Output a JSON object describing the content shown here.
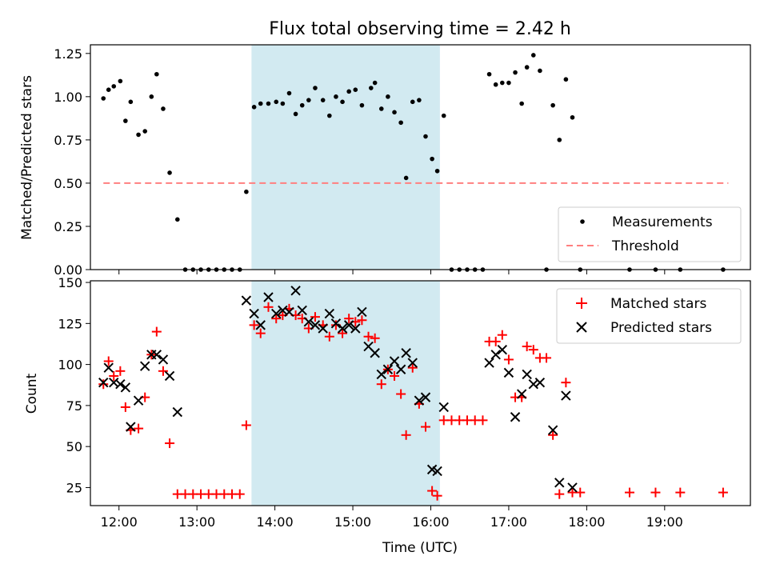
{
  "title": "Flux total observing time = 2.42 h",
  "colors": {
    "highlight": "#add8e6",
    "measurement": "#000000",
    "threshold": "#ff7f7f",
    "matched": "#ff0000",
    "predicted": "#000000"
  },
  "chart_data": [
    {
      "type": "scatter",
      "ylabel": "Matched/Predicted stars",
      "xlim": [
        "11:38",
        "20:06"
      ],
      "ylim": [
        0,
        1.3
      ],
      "x_ticks": [
        "12:00",
        "13:00",
        "14:00",
        "15:00",
        "16:00",
        "17:00",
        "18:00",
        "19:00"
      ],
      "y_ticks": [
        "0.00",
        "0.25",
        "0.50",
        "0.75",
        "1.00",
        "1.25"
      ],
      "highlight_span": [
        "13:42",
        "16:07"
      ],
      "legend": {
        "placement": "lower-right",
        "entries": [
          "Measurements",
          "Threshold"
        ]
      },
      "threshold": {
        "name": "Threshold",
        "value": 0.5,
        "x": [
          "11:48",
          "19:49"
        ]
      },
      "series": [
        {
          "name": "Measurements",
          "marker": "dot",
          "points": [
            [
              "11:48",
              0.99
            ],
            [
              "11:52",
              1.04
            ],
            [
              "11:56",
              1.06
            ],
            [
              "12:01",
              1.09
            ],
            [
              "12:05",
              0.86
            ],
            [
              "12:09",
              0.97
            ],
            [
              "12:15",
              0.78
            ],
            [
              "12:20",
              0.8
            ],
            [
              "12:25",
              1.0
            ],
            [
              "12:29",
              1.13
            ],
            [
              "12:34",
              0.93
            ],
            [
              "12:39",
              0.56
            ],
            [
              "12:45",
              0.29
            ],
            [
              "12:51",
              0.0
            ],
            [
              "12:57",
              0.0
            ],
            [
              "13:03",
              0.0
            ],
            [
              "13:09",
              0.0
            ],
            [
              "13:15",
              0.0
            ],
            [
              "13:21",
              0.0
            ],
            [
              "13:27",
              0.0
            ],
            [
              "13:33",
              0.0
            ],
            [
              "13:38",
              0.45
            ],
            [
              "13:44",
              0.94
            ],
            [
              "13:49",
              0.96
            ],
            [
              "13:55",
              0.96
            ],
            [
              "14:01",
              0.97
            ],
            [
              "14:06",
              0.96
            ],
            [
              "14:11",
              1.02
            ],
            [
              "14:16",
              0.9
            ],
            [
              "14:21",
              0.95
            ],
            [
              "14:26",
              0.98
            ],
            [
              "14:31",
              1.05
            ],
            [
              "14:37",
              0.98
            ],
            [
              "14:42",
              0.89
            ],
            [
              "14:47",
              1.0
            ],
            [
              "14:52",
              0.97
            ],
            [
              "14:57",
              1.03
            ],
            [
              "15:02",
              1.04
            ],
            [
              "15:07",
              0.95
            ],
            [
              "15:14",
              1.05
            ],
            [
              "15:17",
              1.08
            ],
            [
              "15:22",
              0.93
            ],
            [
              "15:27",
              1.0
            ],
            [
              "15:32",
              0.91
            ],
            [
              "15:37",
              0.85
            ],
            [
              "15:41",
              0.53
            ],
            [
              "15:46",
              0.97
            ],
            [
              "15:51",
              0.98
            ],
            [
              "15:56",
              0.77
            ],
            [
              "16:01",
              0.64
            ],
            [
              "16:05",
              0.57
            ],
            [
              "16:10",
              0.89
            ],
            [
              "16:16",
              0.0
            ],
            [
              "16:22",
              0.0
            ],
            [
              "16:28",
              0.0
            ],
            [
              "16:34",
              0.0
            ],
            [
              "16:40",
              0.0
            ],
            [
              "16:45",
              1.13
            ],
            [
              "16:50",
              1.07
            ],
            [
              "16:55",
              1.08
            ],
            [
              "17:00",
              1.08
            ],
            [
              "17:05",
              1.14
            ],
            [
              "17:10",
              0.96
            ],
            [
              "17:14",
              1.17
            ],
            [
              "17:19",
              1.24
            ],
            [
              "17:24",
              1.15
            ],
            [
              "17:29",
              0.0
            ],
            [
              "17:34",
              0.95
            ],
            [
              "17:39",
              0.75
            ],
            [
              "17:44",
              1.1
            ],
            [
              "17:49",
              0.88
            ],
            [
              "17:55",
              0.0
            ],
            [
              "18:33",
              0.0
            ],
            [
              "18:53",
              0.0
            ],
            [
              "19:12",
              0.0
            ],
            [
              "19:45",
              0.0
            ]
          ]
        }
      ]
    },
    {
      "type": "scatter",
      "xlabel": "Time (UTC)",
      "ylabel": "Count",
      "xlim": [
        "11:38",
        "20:06"
      ],
      "ylim": [
        14,
        151
      ],
      "x_ticks": [
        "12:00",
        "13:00",
        "14:00",
        "15:00",
        "16:00",
        "17:00",
        "18:00",
        "19:00"
      ],
      "y_ticks": [
        "25",
        "50",
        "75",
        "100",
        "125",
        "150"
      ],
      "highlight_span": [
        "13:42",
        "16:07"
      ],
      "legend": {
        "placement": "upper-right",
        "entries": [
          "Matched stars",
          "Predicted stars"
        ]
      },
      "series": [
        {
          "name": "Matched stars",
          "marker": "plus",
          "points": [
            [
              "11:48",
              88
            ],
            [
              "11:52",
              102
            ],
            [
              "11:56",
              93
            ],
            [
              "12:01",
              96
            ],
            [
              "12:05",
              74
            ],
            [
              "12:09",
              60
            ],
            [
              "12:15",
              61
            ],
            [
              "12:20",
              80
            ],
            [
              "12:25",
              106
            ],
            [
              "12:29",
              120
            ],
            [
              "12:34",
              96
            ],
            [
              "12:39",
              52
            ],
            [
              "12:45",
              21
            ],
            [
              "12:51",
              21
            ],
            [
              "12:57",
              21
            ],
            [
              "13:03",
              21
            ],
            [
              "13:09",
              21
            ],
            [
              "13:15",
              21
            ],
            [
              "13:21",
              21
            ],
            [
              "13:27",
              21
            ],
            [
              "13:33",
              21
            ],
            [
              "13:38",
              63
            ],
            [
              "13:44",
              124
            ],
            [
              "13:49",
              119
            ],
            [
              "13:55",
              135
            ],
            [
              "14:01",
              128
            ],
            [
              "14:06",
              130
            ],
            [
              "14:11",
              134
            ],
            [
              "14:16",
              130
            ],
            [
              "14:21",
              128
            ],
            [
              "14:26",
              122
            ],
            [
              "14:31",
              129
            ],
            [
              "14:37",
              124
            ],
            [
              "14:42",
              117
            ],
            [
              "14:47",
              124
            ],
            [
              "14:52",
              119
            ],
            [
              "14:57",
              128
            ],
            [
              "15:02",
              126
            ],
            [
              "15:07",
              127
            ],
            [
              "15:12",
              117
            ],
            [
              "15:17",
              116
            ],
            [
              "15:22",
              88
            ],
            [
              "15:27",
              97
            ],
            [
              "15:32",
              93
            ],
            [
              "15:37",
              82
            ],
            [
              "15:41",
              57
            ],
            [
              "15:46",
              98
            ],
            [
              "15:51",
              76
            ],
            [
              "15:56",
              62
            ],
            [
              "16:01",
              23
            ],
            [
              "16:05",
              20
            ],
            [
              "16:10",
              66
            ],
            [
              "16:16",
              66
            ],
            [
              "16:22",
              66
            ],
            [
              "16:28",
              66
            ],
            [
              "16:34",
              66
            ],
            [
              "16:40",
              66
            ],
            [
              "16:45",
              114
            ],
            [
              "16:50",
              114
            ],
            [
              "16:55",
              118
            ],
            [
              "17:00",
              103
            ],
            [
              "17:05",
              80
            ],
            [
              "17:10",
              80
            ],
            [
              "17:14",
              111
            ],
            [
              "17:19",
              109
            ],
            [
              "17:24",
              104
            ],
            [
              "17:29",
              104
            ],
            [
              "17:34",
              57
            ],
            [
              "17:39",
              21
            ],
            [
              "17:44",
              89
            ],
            [
              "17:49",
              22
            ],
            [
              "17:55",
              22
            ],
            [
              "18:33",
              22
            ],
            [
              "18:53",
              22
            ],
            [
              "19:12",
              22
            ],
            [
              "19:45",
              22
            ]
          ]
        },
        {
          "name": "Predicted stars",
          "marker": "x",
          "points": [
            [
              "11:48",
              89
            ],
            [
              "11:52",
              98
            ],
            [
              "11:56",
              89
            ],
            [
              "12:01",
              88
            ],
            [
              "12:05",
              86
            ],
            [
              "12:09",
              62
            ],
            [
              "12:15",
              78
            ],
            [
              "12:20",
              99
            ],
            [
              "12:25",
              106
            ],
            [
              "12:29",
              106
            ],
            [
              "12:34",
              103
            ],
            [
              "12:39",
              93
            ],
            [
              "12:45",
              71
            ],
            [
              "13:38",
              139
            ],
            [
              "13:44",
              131
            ],
            [
              "13:49",
              124
            ],
            [
              "13:55",
              141
            ],
            [
              "14:01",
              131
            ],
            [
              "14:06",
              133
            ],
            [
              "14:11",
              132
            ],
            [
              "14:16",
              145
            ],
            [
              "14:21",
              133
            ],
            [
              "14:26",
              126
            ],
            [
              "14:31",
              124
            ],
            [
              "14:37",
              122
            ],
            [
              "14:42",
              131
            ],
            [
              "14:47",
              125
            ],
            [
              "14:52",
              122
            ],
            [
              "14:57",
              124
            ],
            [
              "15:02",
              122
            ],
            [
              "15:07",
              132
            ],
            [
              "15:12",
              111
            ],
            [
              "15:17",
              107
            ],
            [
              "15:22",
              94
            ],
            [
              "15:27",
              97
            ],
            [
              "15:32",
              102
            ],
            [
              "15:37",
              97
            ],
            [
              "15:41",
              107
            ],
            [
              "15:46",
              101
            ],
            [
              "15:51",
              78
            ],
            [
              "15:56",
              80
            ],
            [
              "16:01",
              36
            ],
            [
              "16:05",
              35
            ],
            [
              "16:10",
              74
            ],
            [
              "16:45",
              101
            ],
            [
              "16:50",
              106
            ],
            [
              "16:55",
              109
            ],
            [
              "17:00",
              95
            ],
            [
              "17:05",
              68
            ],
            [
              "17:10",
              82
            ],
            [
              "17:14",
              94
            ],
            [
              "17:19",
              88
            ],
            [
              "17:24",
              89
            ],
            [
              "17:34",
              60
            ],
            [
              "17:39",
              28
            ],
            [
              "17:44",
              81
            ],
            [
              "17:49",
              25
            ]
          ]
        }
      ]
    }
  ]
}
